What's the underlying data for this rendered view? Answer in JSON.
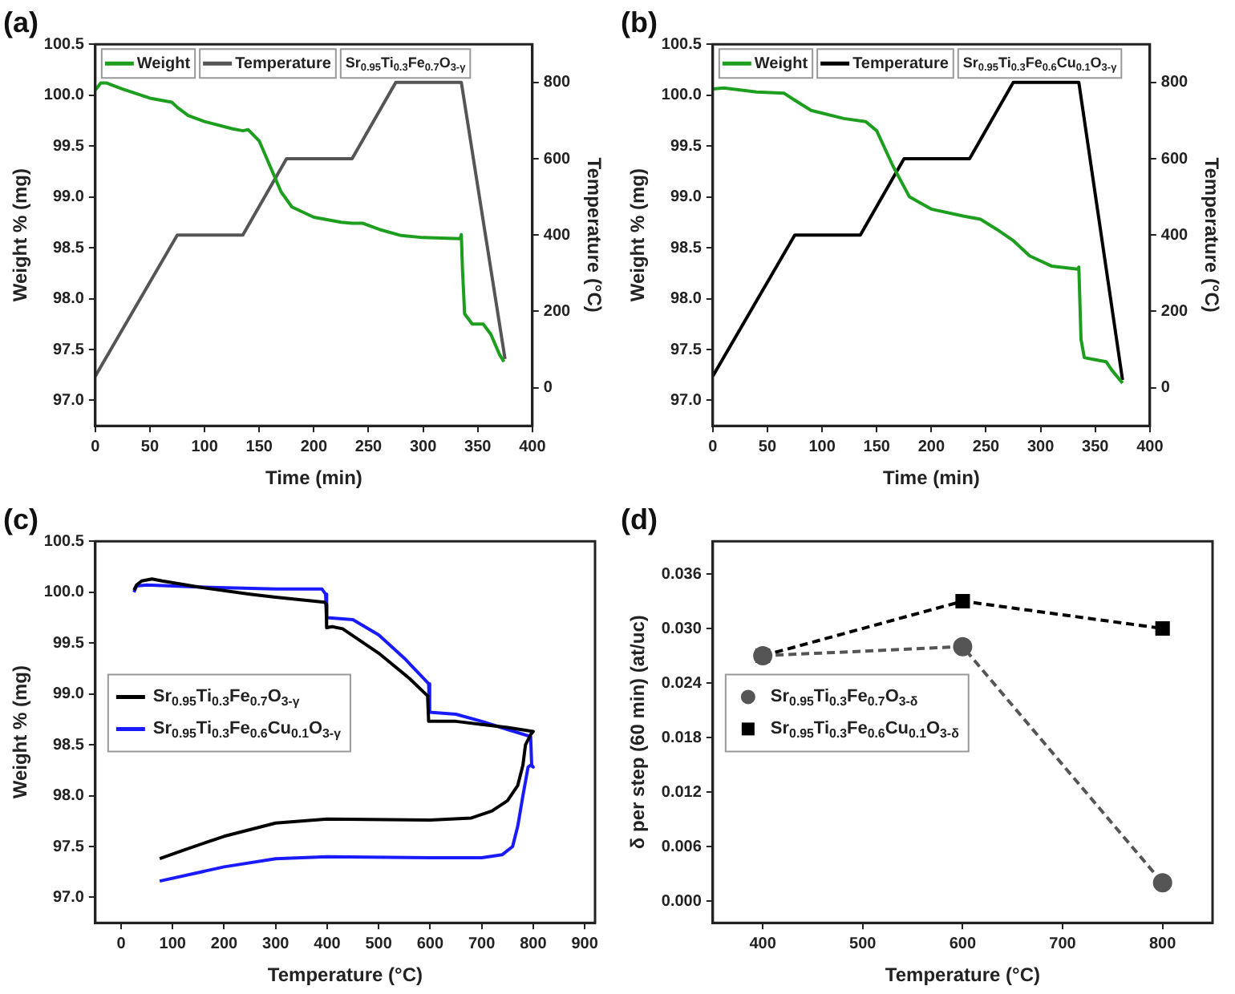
{
  "chart_data": [
    {
      "type": "line",
      "title": "(a)",
      "xlabel": "Time (min)",
      "ylabel": "Weight % (mg)",
      "y2label": "Temperature (°C)",
      "legend": "top",
      "legend_title": "Sr$_{0.95}$Ti$_{0.3}$Fe$_{0.7}$O$_{3-γ}$",
      "grid": false,
      "marker": "none",
      "xlim": [
        0,
        400
      ],
      "xticks": [
        0,
        50,
        100,
        150,
        200,
        250,
        300,
        350,
        400
      ],
      "ylim": [
        96.75,
        100.5
      ],
      "yticks": [
        {
          "value": 97,
          "label": "97.0"
        },
        97.5,
        {
          "value": 98,
          "label": "98.0"
        },
        98.5,
        {
          "value": 99,
          "label": "99.0"
        },
        99.5,
        {
          "value": 100,
          "label": "100.0"
        },
        100.5
      ],
      "y2lim": [
        -100,
        900
      ],
      "y2ticks": [
        0,
        200,
        400,
        600,
        800
      ],
      "series": [
        {
          "name": "Weight",
          "color": "#1e9e1e",
          "x": [
            0,
            5,
            10,
            25,
            50,
            70,
            75,
            85,
            100,
            125,
            135,
            140,
            150,
            160,
            170,
            180,
            200,
            225,
            235,
            245,
            260,
            280,
            300,
            334,
            335,
            336,
            338,
            345,
            355,
            362,
            370,
            374
          ],
          "values": [
            100.05,
            100.12,
            100.12,
            100.06,
            99.97,
            99.93,
            99.88,
            99.8,
            99.74,
            99.67,
            99.65,
            99.66,
            99.55,
            99.3,
            99.05,
            98.9,
            98.8,
            98.75,
            98.74,
            98.74,
            98.68,
            98.62,
            98.6,
            98.59,
            98.63,
            98.3,
            97.85,
            97.75,
            97.75,
            97.65,
            97.45,
            97.38
          ]
        },
        {
          "name": "Temperature",
          "color": "#555555",
          "axis": "y2",
          "x": [
            0,
            75,
            135,
            175,
            235,
            275,
            335,
            375
          ],
          "values": [
            30,
            400,
            400,
            600,
            600,
            800,
            800,
            75
          ]
        }
      ]
    },
    {
      "type": "line",
      "title": "(b)",
      "xlabel": "Time (min)",
      "ylabel": "Weight % (mg)",
      "y2label": "Temperature (°C)",
      "legend": "top",
      "legend_title": "Sr$_{0.95}$Ti$_{0.3}$Fe$_{0.6}$Cu$_{0.1}$O$_{3-γ}$",
      "grid": false,
      "marker": "none",
      "xlim": [
        0,
        400
      ],
      "xticks": [
        0,
        50,
        100,
        150,
        200,
        250,
        300,
        350,
        400
      ],
      "ylim": [
        96.75,
        100.5
      ],
      "yticks": [
        {
          "value": 97,
          "label": "97.0"
        },
        97.5,
        {
          "value": 98,
          "label": "98.0"
        },
        98.5,
        {
          "value": 99,
          "label": "99.0"
        },
        99.5,
        {
          "value": 100,
          "label": "100.0"
        },
        100.5
      ],
      "y2lim": [
        -100,
        900
      ],
      "y2ticks": [
        0,
        200,
        400,
        600,
        800
      ],
      "series": [
        {
          "name": "Weight",
          "color": "#1e9e1e",
          "x": [
            0,
            10,
            40,
            65,
            75,
            90,
            120,
            140,
            150,
            165,
            180,
            200,
            230,
            245,
            260,
            275,
            290,
            310,
            334,
            335,
            337,
            340,
            350,
            360,
            365,
            375
          ],
          "values": [
            100.06,
            100.07,
            100.03,
            100.02,
            99.95,
            99.85,
            99.77,
            99.74,
            99.65,
            99.3,
            99.0,
            98.88,
            98.81,
            98.78,
            98.68,
            98.57,
            98.42,
            98.32,
            98.29,
            98.31,
            97.6,
            97.42,
            97.4,
            97.38,
            97.3,
            97.17
          ]
        },
        {
          "name": "Temperature",
          "color": "#000000",
          "axis": "y2",
          "x": [
            0,
            75,
            135,
            175,
            235,
            275,
            335,
            375
          ],
          "values": [
            30,
            400,
            400,
            600,
            600,
            800,
            800,
            20
          ]
        }
      ]
    },
    {
      "type": "line",
      "title": "(c)",
      "xlabel": "Temperature (°C)",
      "ylabel": "Weight % (mg)",
      "legend": "left",
      "grid": false,
      "marker": "none",
      "xlim": [
        -50,
        920
      ],
      "xticks": [
        0,
        100,
        200,
        300,
        400,
        500,
        600,
        700,
        800,
        900
      ],
      "ylim": [
        96.75,
        100.5
      ],
      "yticks": [
        {
          "value": 97,
          "label": "97.0"
        },
        97.5,
        {
          "value": 98,
          "label": "98.0"
        },
        98.5,
        {
          "value": 99,
          "label": "99.0"
        },
        99.5,
        {
          "value": 100,
          "label": "100.0"
        },
        100.5
      ],
      "series": [
        {
          "name": "Sr$_{0.95}$Ti$_{0.3}$Fe$_{0.7}$O$_{3-γ}$",
          "color": "#000000",
          "x": [
            25,
            30,
            40,
            60,
            80,
            150,
            250,
            300,
            395,
            398,
            399,
            410,
            430,
            500,
            560,
            595,
            597,
            650,
            700,
            750,
            800,
            795,
            785,
            780,
            770,
            750,
            720,
            680,
            600,
            400,
            300,
            200,
            130,
            75
          ],
          "values": [
            100.02,
            100.07,
            100.11,
            100.13,
            100.11,
            100.05,
            99.98,
            99.95,
            99.9,
            99.88,
            99.65,
            99.66,
            99.64,
            99.4,
            99.15,
            98.98,
            98.73,
            98.73,
            98.7,
            98.67,
            98.63,
            98.6,
            98.5,
            98.3,
            98.1,
            97.95,
            97.85,
            97.78,
            97.76,
            97.77,
            97.73,
            97.6,
            97.48,
            97.38
          ]
        },
        {
          "name": "Sr$_{0.95}$Ti$_{0.3}$Fe$_{0.6}$Cu$_{0.1}$O$_{3-γ}$",
          "color": "#1a1aff",
          "x": [
            25,
            30,
            50,
            150,
            300,
            390,
            397,
            399,
            450,
            500,
            550,
            597,
            599,
            650,
            700,
            750,
            795,
            797,
            800,
            795,
            790,
            780,
            770,
            760,
            740,
            700,
            600,
            400,
            300,
            200,
            75
          ],
          "values": [
            100.0,
            100.06,
            100.07,
            100.05,
            100.03,
            100.03,
            99.98,
            99.75,
            99.73,
            99.58,
            99.35,
            99.1,
            98.82,
            98.8,
            98.73,
            98.65,
            98.58,
            98.3,
            98.28,
            98.3,
            98.28,
            98.0,
            97.7,
            97.5,
            97.42,
            97.39,
            97.39,
            97.4,
            97.38,
            97.3,
            97.16
          ]
        }
      ]
    },
    {
      "type": "line",
      "title": "(d)",
      "xlabel": "Temperature (°C)",
      "ylabel": "δ per step (60 min) (at/uc)",
      "legend": "left",
      "grid": false,
      "line_style": "dashed",
      "xlim": [
        350,
        850
      ],
      "xticks": [
        400,
        500,
        600,
        700,
        800
      ],
      "ylim": [
        -0.0024,
        0.0396
      ],
      "yticks": [
        {
          "value": 0,
          "label": "0.000"
        },
        0.006,
        0.012,
        0.018,
        0.024,
        {
          "value": 0.03,
          "label": "0.030"
        },
        0.036
      ],
      "x": [
        400,
        600,
        800
      ],
      "series": [
        {
          "name": "Sr$_{0.95}$Ti$_{0.3}$Fe$_{0.7}$O$_{3-δ}$",
          "color": "#555555",
          "marker": "circle",
          "values": [
            0.027,
            0.028,
            0.002
          ]
        },
        {
          "name": "Sr$_{0.95}$Ti$_{0.3}$Fe$_{0.6}$Cu$_{0.1}$O$_{3-δ}$",
          "color": "#000000",
          "marker": "square",
          "values": [
            0.027,
            0.033,
            0.03
          ]
        }
      ]
    }
  ]
}
